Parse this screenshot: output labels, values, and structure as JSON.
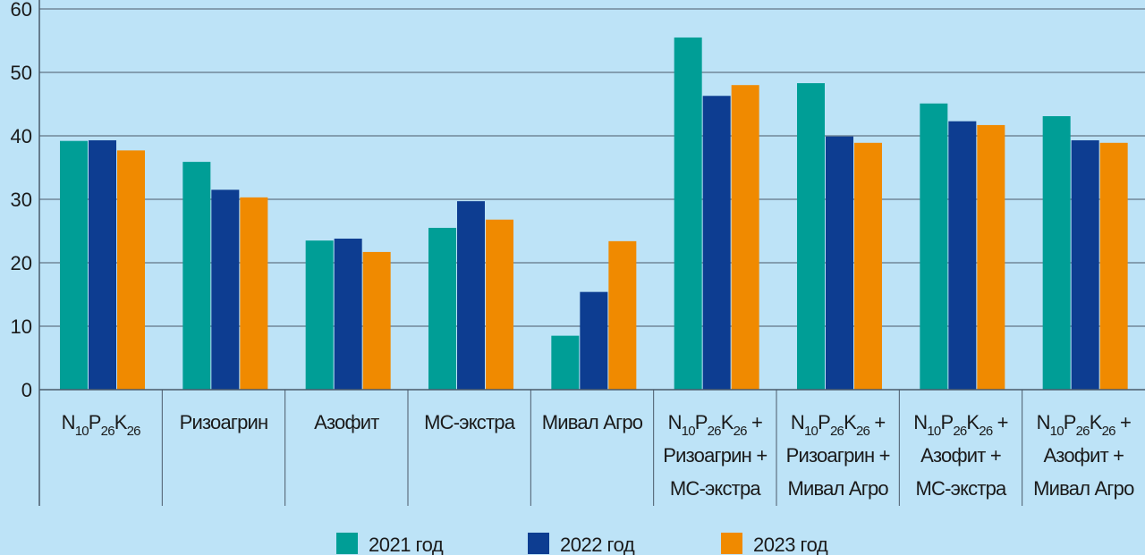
{
  "chart_data": {
    "type": "bar",
    "title": "",
    "xlabel": "",
    "ylabel": "",
    "ylim": [
      0,
      60
    ],
    "yticks": [
      0,
      10,
      20,
      30,
      40,
      50,
      60
    ],
    "grid": true,
    "legend_position": "bottom",
    "categories": [
      [
        "N10P26K26"
      ],
      [
        "Ризоагрин"
      ],
      [
        "Азофит"
      ],
      [
        "МС-экстра"
      ],
      [
        "Мивал Агро"
      ],
      [
        "N10P26K26 +",
        "Ризоагрин +",
        "МС-экстра"
      ],
      [
        "N10P26K26 +",
        "Ризоагрин +",
        "Мивал Агро"
      ],
      [
        "N10P26K26 +",
        "Азофит +",
        "МС-экстра"
      ],
      [
        "N10P26K26 +",
        "Азофит +",
        "Мивал Агро"
      ]
    ],
    "series": [
      {
        "name": "2021 год",
        "color": "#009e96",
        "values": [
          39.2,
          35.9,
          23.5,
          25.5,
          8.5,
          55.5,
          48.3,
          45.1,
          43.1
        ]
      },
      {
        "name": "2022 год",
        "color": "#0d3d91",
        "values": [
          39.3,
          31.5,
          23.8,
          29.7,
          15.4,
          46.3,
          39.9,
          42.3,
          39.3
        ]
      },
      {
        "name": "2023 год",
        "color": "#f08a00",
        "values": [
          37.7,
          30.3,
          21.7,
          26.8,
          23.4,
          48.0,
          38.9,
          41.7,
          38.9
        ]
      }
    ]
  }
}
